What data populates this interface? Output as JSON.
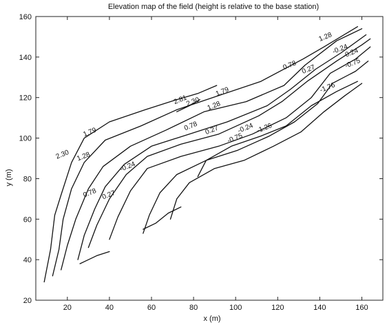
{
  "chart_data": {
    "type": "contour",
    "title": "Elevation map of the field (height is relative to the base station)",
    "xlabel": "x (m)",
    "ylabel": "y (m)",
    "xlim": [
      5,
      170
    ],
    "ylim": [
      20,
      160
    ],
    "xticks": [
      20,
      40,
      60,
      80,
      100,
      120,
      140,
      160
    ],
    "yticks": [
      20,
      40,
      60,
      80,
      100,
      120,
      140,
      160
    ],
    "grid": false,
    "contours": [
      {
        "level": "2.81",
        "points": [
          [
            72,
            113
          ],
          [
            78,
            116
          ],
          [
            83,
            119
          ]
        ]
      },
      {
        "level": "2.30",
        "points": [
          [
            9,
            29
          ],
          [
            12,
            45
          ],
          [
            14,
            62
          ],
          [
            17,
            72
          ],
          [
            22,
            88
          ],
          [
            28,
            100
          ],
          [
            40,
            108
          ],
          [
            57,
            114
          ],
          [
            72,
            119
          ],
          [
            82,
            122
          ],
          [
            91,
            126
          ]
        ]
      },
      {
        "level": "1.79",
        "points": [
          [
            13,
            32
          ],
          [
            16,
            45
          ],
          [
            18,
            60
          ],
          [
            22,
            75
          ],
          [
            28,
            88
          ],
          [
            38,
            99
          ],
          [
            55,
            106
          ],
          [
            72,
            114
          ],
          [
            92,
            121
          ],
          [
            112,
            128
          ],
          [
            132,
            139
          ],
          [
            142,
            145
          ],
          [
            158,
            155
          ]
        ]
      },
      {
        "level": "1.28",
        "points": [
          [
            17,
            35
          ],
          [
            20,
            47
          ],
          [
            24,
            60
          ],
          [
            30,
            75
          ],
          [
            37,
            86
          ],
          [
            50,
            96
          ],
          [
            67,
            104
          ],
          [
            85,
            113
          ],
          [
            105,
            118
          ],
          [
            123,
            126
          ],
          [
            133,
            136
          ],
          [
            148,
            148
          ],
          [
            160,
            154
          ]
        ]
      },
      {
        "level": "0.78",
        "points": [
          [
            25,
            40
          ],
          [
            28,
            52
          ],
          [
            33,
            65
          ],
          [
            38,
            76
          ],
          [
            47,
            87
          ],
          [
            60,
            96
          ],
          [
            78,
            102
          ],
          [
            96,
            108
          ],
          [
            115,
            116
          ],
          [
            126,
            124
          ],
          [
            138,
            134
          ],
          [
            150,
            142
          ],
          [
            162,
            151
          ]
        ]
      },
      {
        "level": "0.27",
        "points": [
          [
            30,
            46
          ],
          [
            34,
            57
          ],
          [
            40,
            70
          ],
          [
            48,
            82
          ],
          [
            58,
            91
          ],
          [
            74,
            97
          ],
          [
            92,
            102
          ],
          [
            111,
            111
          ],
          [
            122,
            118
          ],
          [
            134,
            128
          ],
          [
            148,
            138
          ],
          [
            160,
            146
          ],
          [
            164,
            149
          ]
        ]
      },
      {
        "level": "-0.24",
        "points": [
          [
            40,
            50
          ],
          [
            44,
            61
          ],
          [
            50,
            74
          ],
          [
            58,
            85
          ],
          [
            74,
            91
          ],
          [
            92,
            96
          ],
          [
            108,
            102
          ],
          [
            124,
            110
          ],
          [
            136,
            120
          ],
          [
            145,
            132
          ],
          [
            157,
            139
          ],
          [
            164,
            145
          ]
        ]
      },
      {
        "level": "-0.75",
        "points": [
          [
            56,
            53
          ],
          [
            59,
            62
          ],
          [
            64,
            73
          ],
          [
            72,
            82
          ],
          [
            86,
            89
          ],
          [
            101,
            94
          ],
          [
            116,
            101
          ],
          [
            128,
            108
          ],
          [
            139,
            117
          ],
          [
            146,
            127
          ],
          [
            157,
            133
          ],
          [
            163,
            138
          ]
        ]
      },
      {
        "level": "-1.26",
        "points": [
          [
            69,
            60
          ],
          [
            72,
            70
          ],
          [
            78,
            78
          ],
          [
            90,
            85
          ],
          [
            104,
            89
          ],
          [
            118,
            96
          ],
          [
            131,
            103
          ],
          [
            142,
            113
          ],
          [
            152,
            121
          ],
          [
            160,
            127
          ]
        ]
      },
      {
        "level": "-1.76",
        "points": [
          [
            82,
            81
          ],
          [
            86,
            89
          ],
          [
            98,
            96
          ],
          [
            112,
            101
          ],
          [
            124,
            106
          ],
          [
            136,
            116
          ],
          [
            148,
            123
          ],
          [
            158,
            128
          ]
        ]
      },
      {
        "level": "",
        "points": [
          [
            56,
            55
          ],
          [
            62,
            58
          ],
          [
            68,
            63
          ],
          [
            74,
            66
          ]
        ]
      },
      {
        "level": "",
        "points": [
          [
            26,
            38
          ],
          [
            34,
            42
          ],
          [
            40,
            44
          ]
        ]
      }
    ],
    "labels": [
      {
        "text": "2.81",
        "x": 74,
        "y": 118
      },
      {
        "text": "2.30",
        "x": 80,
        "y": 117
      },
      {
        "text": "1.79",
        "x": 94,
        "y": 122
      },
      {
        "text": "1.28",
        "x": 90,
        "y": 115
      },
      {
        "text": "0.78",
        "x": 79,
        "y": 105
      },
      {
        "text": "0.27",
        "x": 89,
        "y": 103
      },
      {
        "text": "-0.24",
        "x": 105,
        "y": 104
      },
      {
        "text": "-0.75",
        "x": 100,
        "y": 99
      },
      {
        "text": "-1.26",
        "x": 114,
        "y": 104
      },
      {
        "text": "2.30",
        "x": 18,
        "y": 91
      },
      {
        "text": "1.79",
        "x": 31,
        "y": 102
      },
      {
        "text": "1.28",
        "x": 28,
        "y": 90
      },
      {
        "text": "0.78",
        "x": 31,
        "y": 72
      },
      {
        "text": "0.27",
        "x": 40,
        "y": 71
      },
      {
        "text": "-0.24",
        "x": 49,
        "y": 85
      },
      {
        "text": "1.28",
        "x": 143,
        "y": 149
      },
      {
        "text": "0.78",
        "x": 126,
        "y": 135
      },
      {
        "text": "0.27",
        "x": 135,
        "y": 133
      },
      {
        "text": "-0.24",
        "x": 155,
        "y": 141
      },
      {
        "text": "-0.75",
        "x": 156,
        "y": 136
      },
      {
        "text": "-1.76",
        "x": 144,
        "y": 124
      },
      {
        "text": "-0.24",
        "x": 150,
        "y": 143
      }
    ]
  }
}
